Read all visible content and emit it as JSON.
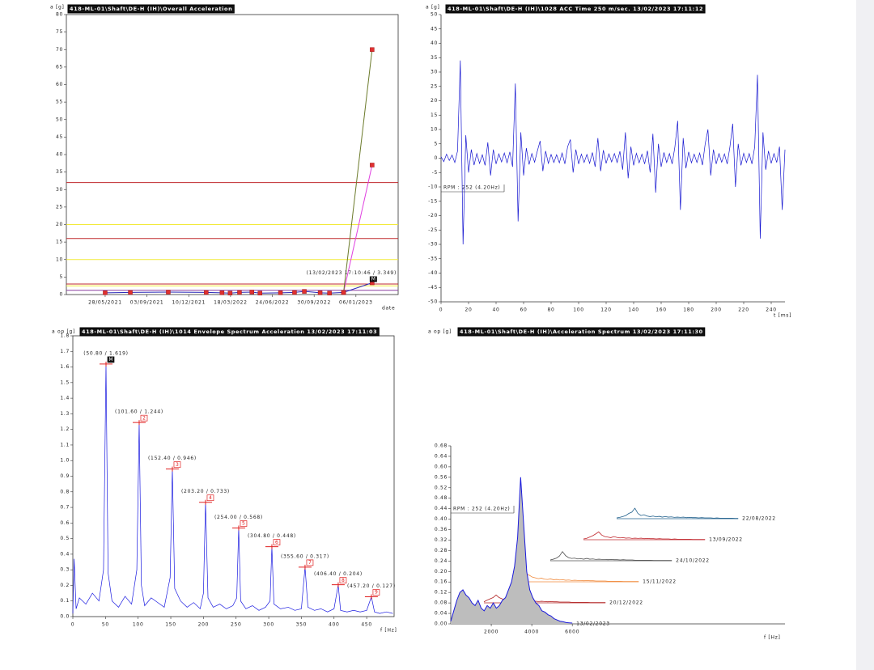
{
  "chart_data": [
    {
      "type": "line",
      "title": "418-ML-01\\Shaft\\DE-H (IH)\\Overall Acceleration",
      "ylabel": "a [g]",
      "xlabel": "date",
      "xlim": [
        "26/02/2021",
        "15/04/2023"
      ],
      "xticks": [
        "28/05/2021",
        "03/09/2021",
        "10/12/2021",
        "18/03/2022",
        "24/06/2022",
        "30/09/2022",
        "06/01/2023"
      ],
      "ylim": [
        0,
        80
      ],
      "yticks": [
        0,
        5,
        10,
        15,
        20,
        25,
        30,
        35,
        40,
        45,
        50,
        55,
        60,
        65,
        70,
        75,
        80
      ],
      "alarm_levels": [
        {
          "value": 32,
          "color": "#c0282d"
        },
        {
          "value": 20,
          "color": "#f2ea3a"
        },
        {
          "value": 16,
          "color": "#c0282d"
        },
        {
          "value": 10,
          "color": "#f2ea3a"
        },
        {
          "value": 3,
          "color": "#c0282d"
        },
        {
          "value": 2.5,
          "color": "#f2ea3a"
        },
        {
          "value": 1.2,
          "color": "#8a3fa0"
        }
      ],
      "marker_color": "#e03030",
      "series": [
        {
          "color": "#2a2ab8",
          "x": [
            "28/05/2021",
            "26/07/2021",
            "23/10/2021",
            "20/01/2022",
            "26/02/2022",
            "17/03/2022",
            "08/04/2022",
            "07/05/2022",
            "26/05/2022",
            "13/07/2022",
            "15/08/2022",
            "07/09/2022",
            "14/10/2022",
            "05/11/2022",
            "08/12/2022",
            "13/02/2023"
          ],
          "values": [
            0.5,
            0.6,
            0.7,
            0.6,
            0.5,
            0.4,
            0.6,
            0.7,
            0.4,
            0.5,
            0.6,
            0.9,
            0.5,
            0.4,
            0.6,
            3.349
          ]
        },
        {
          "color": "#e040e0",
          "x": [
            "08/12/2022",
            "13/02/2023"
          ],
          "values": [
            0.6,
            37
          ]
        },
        {
          "color": "#6b7a2a",
          "x": [
            "08/12/2022",
            "13/02/2023"
          ],
          "values": [
            0.6,
            70
          ]
        }
      ],
      "annotation": {
        "label": "(13/02/2023 17:10:46 / 3.349)",
        "marker": "M"
      }
    },
    {
      "type": "line",
      "title": "418-ML-01\\Shaft\\DE-H (IH)\\1028 ACC Time 250 m/sec. 13/02/2023 17:11:12",
      "ylabel": "a [g]",
      "xlabel": "t [ms]",
      "annotation": "RPM : 252 (4.20Hz)",
      "xlim": [
        0,
        250
      ],
      "xticks": [
        0,
        20,
        40,
        60,
        80,
        100,
        120,
        140,
        160,
        180,
        200,
        220,
        240
      ],
      "ylim": [
        -50,
        50
      ],
      "yticks": [
        50,
        45,
        40,
        35,
        30,
        25,
        20,
        15,
        10,
        5,
        0,
        -5,
        -10,
        -15,
        -20,
        -25,
        -30,
        -35,
        -40,
        -45,
        -50
      ],
      "x": [
        0,
        2,
        4,
        6,
        8,
        10,
        12,
        14,
        16,
        18,
        20,
        22,
        24,
        26,
        28,
        30,
        32,
        34,
        36,
        38,
        40,
        42,
        44,
        46,
        48,
        50,
        52,
        54,
        56,
        58,
        60,
        62,
        64,
        66,
        68,
        70,
        72,
        74,
        76,
        78,
        80,
        82,
        84,
        86,
        88,
        90,
        92,
        94,
        96,
        98,
        100,
        102,
        104,
        106,
        108,
        110,
        112,
        114,
        116,
        118,
        120,
        122,
        124,
        126,
        128,
        130,
        132,
        134,
        136,
        138,
        140,
        142,
        144,
        146,
        148,
        150,
        152,
        154,
        156,
        158,
        160,
        162,
        164,
        166,
        168,
        170,
        172,
        174,
        176,
        178,
        180,
        182,
        184,
        186,
        188,
        190,
        192,
        194,
        196,
        198,
        200,
        202,
        204,
        206,
        208,
        210,
        212,
        214,
        216,
        218,
        220,
        222,
        224,
        226,
        228,
        230,
        232,
        234,
        236,
        238,
        240,
        242,
        244,
        246,
        248,
        250
      ],
      "series": [
        {
          "color": "#1515d0",
          "values": [
            0.5,
            -1.2,
            1.4,
            -0.8,
            1.1,
            -1.5,
            2.5,
            34,
            -30,
            8,
            -5,
            3,
            -2.4,
            1.6,
            -1.8,
            1.2,
            -2.5,
            5.5,
            -6,
            3,
            -2,
            1.5,
            -1.3,
            1.8,
            -1.6,
            2.2,
            -3,
            26,
            -22,
            9,
            -6,
            3.5,
            -2.2,
            1.6,
            -1.4,
            2.5,
            6,
            -4.5,
            2.5,
            -1.8,
            1.3,
            -1.5,
            1.2,
            -1.6,
            1.8,
            -2,
            4,
            6.5,
            -5,
            3,
            -2,
            1.4,
            -1.5,
            1.3,
            -1.8,
            2,
            -3,
            7,
            -4.5,
            2.8,
            -1.8,
            1.5,
            -1.3,
            1.6,
            -1.5,
            2.4,
            -4,
            9,
            -7,
            4,
            -2.5,
            1.7,
            -1.6,
            1.4,
            -2,
            2.6,
            -5,
            8.5,
            -12,
            5,
            -3,
            2,
            -1.5,
            1.6,
            -2,
            4,
            13,
            -18,
            7,
            -3.5,
            2.2,
            -1.6,
            1.4,
            -1.5,
            1.8,
            -2.4,
            5,
            10,
            -6,
            3,
            -2,
            1.6,
            -1.4,
            1.5,
            -2,
            4,
            12,
            -10,
            5,
            -2.5,
            1.7,
            -1.5,
            1.6,
            -2,
            4,
            29,
            -28,
            9,
            -4,
            2.5,
            -1.8,
            1.6,
            -1.5,
            4,
            -18,
            3
          ]
        }
      ]
    },
    {
      "type": "line",
      "title": "418-ML-01\\Shaft\\DE-H (IH)\\1014 Envelope Spectrum Acceleration 13/02/2023 17:11:03",
      "ylabel": "a op [g]",
      "xlabel": "f [Hz]",
      "xlim": [
        0,
        492
      ],
      "xticks": [
        0,
        50,
        100,
        150,
        200,
        250,
        300,
        350,
        400,
        450
      ],
      "ylim": [
        0,
        1.8
      ],
      "yticks": [
        {
          "value": 0,
          "label": "0.0"
        },
        0.1,
        0.2,
        0.3,
        0.4,
        0.5,
        0.6,
        0.7,
        0.8,
        0.9,
        {
          "value": 1,
          "label": "1.0"
        },
        1.1,
        1.2,
        1.3,
        1.4,
        1.5,
        1.6,
        1.7,
        1.8
      ],
      "x": [
        0,
        2,
        5,
        10,
        20,
        30,
        40,
        47,
        50.8,
        54,
        60,
        70,
        80,
        90,
        98,
        101.6,
        105,
        110,
        120,
        130,
        140,
        149,
        152.4,
        156,
        165,
        175,
        185,
        195,
        200,
        203.2,
        207,
        215,
        225,
        235,
        245,
        251,
        254,
        257,
        265,
        275,
        285,
        295,
        302,
        304.8,
        308,
        318,
        330,
        340,
        350,
        355.6,
        360,
        370,
        380,
        390,
        400,
        406.4,
        410,
        420,
        430,
        440,
        450,
        457.2,
        462,
        470,
        480,
        490
      ],
      "series": [
        {
          "color": "#1a1ae0",
          "values": [
            0.02,
            0.37,
            0.05,
            0.12,
            0.08,
            0.15,
            0.1,
            0.3,
            1.619,
            0.28,
            0.1,
            0.06,
            0.13,
            0.08,
            0.3,
            1.244,
            0.2,
            0.07,
            0.12,
            0.09,
            0.06,
            0.25,
            0.946,
            0.18,
            0.1,
            0.06,
            0.09,
            0.05,
            0.15,
            0.733,
            0.12,
            0.06,
            0.08,
            0.05,
            0.07,
            0.12,
            0.568,
            0.1,
            0.05,
            0.07,
            0.04,
            0.06,
            0.1,
            0.448,
            0.08,
            0.05,
            0.06,
            0.04,
            0.05,
            0.317,
            0.06,
            0.04,
            0.05,
            0.03,
            0.05,
            0.204,
            0.04,
            0.03,
            0.04,
            0.03,
            0.04,
            0.127,
            0.03,
            0.02,
            0.03,
            0.02
          ]
        }
      ],
      "peaks": [
        {
          "x": 50.8,
          "y": 1.619,
          "label": "(50.80 / 1.619)",
          "marker": "M"
        },
        {
          "x": 101.6,
          "y": 1.244,
          "label": "(101.60 / 1.244)",
          "marker": "2"
        },
        {
          "x": 152.4,
          "y": 0.946,
          "label": "(152.40 / 0.946)",
          "marker": "3"
        },
        {
          "x": 203.2,
          "y": 0.733,
          "label": "(203.20 / 0.733)",
          "marker": "4"
        },
        {
          "x": 254,
          "y": 0.568,
          "label": "(254.00 / 0.568)",
          "marker": "5"
        },
        {
          "x": 304.8,
          "y": 0.448,
          "label": "(304.80 / 0.448)",
          "marker": "6"
        },
        {
          "x": 355.6,
          "y": 0.317,
          "label": "(355.60 / 0.317)",
          "marker": "7"
        },
        {
          "x": 406.4,
          "y": 0.204,
          "label": "(406.40 / 0.204)",
          "marker": "8"
        },
        {
          "x": 457.2,
          "y": 0.127,
          "label": "(457.20 / 0.127)",
          "marker": "9"
        }
      ]
    },
    {
      "type": "waterfall",
      "title": "418-ML-01\\Shaft\\DE-H (IH)\\Acceleration Spectrum 13/02/2023 17:11:30",
      "ylabel": "a op [g]",
      "xlabel": "f [Hz]",
      "annotation": "RPM : 252 (4.20Hz)",
      "xlim": [
        0,
        16500
      ],
      "xticks": [
        2000,
        4000,
        6000
      ],
      "ylim": [
        0,
        0.68
      ],
      "yticks": [
        {
          "value": 0,
          "label": "0.00"
        },
        {
          "value": 0.04,
          "label": "0.04"
        },
        {
          "value": 0.08,
          "label": "0.08"
        },
        {
          "value": 0.12,
          "label": "0.12"
        },
        {
          "value": 0.16,
          "label": "0.16"
        },
        {
          "value": 0.2,
          "label": "0.20"
        },
        {
          "value": 0.24,
          "label": "0.24"
        },
        {
          "value": 0.28,
          "label": "0.28"
        },
        {
          "value": 0.32,
          "label": "0.32"
        },
        {
          "value": 0.36,
          "label": "0.36"
        },
        {
          "value": 0.4,
          "label": "0.40"
        },
        {
          "value": 0.44,
          "label": "0.44"
        },
        {
          "value": 0.48,
          "label": "0.48"
        },
        {
          "value": 0.52,
          "label": "0.52"
        },
        {
          "value": 0.56,
          "label": "0.56"
        },
        {
          "value": 0.6,
          "label": "0.60"
        },
        {
          "value": 0.64,
          "label": "0.64"
        },
        {
          "value": 0.68,
          "label": "0.68"
        }
      ],
      "fill_color": "#bdbdbd",
      "x": [
        0,
        150,
        300,
        450,
        600,
        750,
        900,
        1050,
        1200,
        1350,
        1500,
        1650,
        1800,
        1950,
        2100,
        2250,
        2400,
        2550,
        2700,
        2850,
        3000,
        3150,
        3300,
        3450,
        3600,
        3750,
        3900,
        4050,
        4200,
        4350,
        4500,
        4650,
        4800,
        4950,
        5100,
        5250,
        5400,
        5550,
        5700,
        5850,
        6000
      ],
      "series": [
        {
          "name": "13/02/2023",
          "color": "#1a1adc",
          "values": [
            0.01,
            0.05,
            0.09,
            0.12,
            0.13,
            0.11,
            0.1,
            0.08,
            0.07,
            0.09,
            0.06,
            0.05,
            0.07,
            0.06,
            0.08,
            0.06,
            0.07,
            0.09,
            0.1,
            0.13,
            0.16,
            0.22,
            0.33,
            0.56,
            0.38,
            0.2,
            0.13,
            0.1,
            0.08,
            0.07,
            0.05,
            0.045,
            0.035,
            0.03,
            0.02,
            0.015,
            0.01,
            0.008,
            0.005,
            0.004,
            0.003
          ]
        },
        {
          "name": "20/12/2022",
          "color": "#b22222",
          "values": [
            0.004,
            0.01,
            0.015,
            0.02,
            0.03,
            0.02,
            0.015,
            0.012,
            0.01,
            0.012,
            0.009,
            0.008,
            0.01,
            0.007,
            0.008,
            0.006,
            0.007,
            0.006,
            0.005,
            0.006,
            0.005,
            0.004,
            0.005,
            0.004,
            0.004,
            0.003,
            0.003,
            0.003,
            0.003,
            0.002,
            0.002,
            0.002,
            0.002,
            0.002,
            0.002,
            0.001,
            0.001,
            0.001,
            0.001,
            0.001,
            0.001
          ]
        },
        {
          "name": "15/11/2022",
          "color": "#f08a3c",
          "values": [
            0.004,
            0.01,
            0.02,
            0.03,
            0.025,
            0.018,
            0.015,
            0.012,
            0.014,
            0.01,
            0.009,
            0.011,
            0.008,
            0.009,
            0.007,
            0.008,
            0.006,
            0.007,
            0.005,
            0.006,
            0.005,
            0.005,
            0.004,
            0.005,
            0.004,
            0.004,
            0.003,
            0.003,
            0.003,
            0.003,
            0.002,
            0.002,
            0.002,
            0.002,
            0.002,
            0.001,
            0.001,
            0.001,
            0.001,
            0.001,
            0.001
          ]
        },
        {
          "name": "24/10/2022",
          "color": "#505050",
          "values": [
            0.003,
            0.006,
            0.01,
            0.018,
            0.035,
            0.02,
            0.012,
            0.009,
            0.01,
            0.007,
            0.008,
            0.006,
            0.009,
            0.006,
            0.007,
            0.005,
            0.006,
            0.005,
            0.005,
            0.004,
            0.005,
            0.004,
            0.004,
            0.003,
            0.004,
            0.003,
            0.003,
            0.003,
            0.002,
            0.002,
            0.002,
            0.002,
            0.002,
            0.002,
            0.001,
            0.001,
            0.001,
            0.001,
            0.001,
            0.001,
            0.001
          ]
        },
        {
          "name": "13/09/2022",
          "color": "#c0272d",
          "values": [
            0.003,
            0.005,
            0.01,
            0.015,
            0.022,
            0.03,
            0.018,
            0.012,
            0.01,
            0.008,
            0.012,
            0.009,
            0.007,
            0.008,
            0.006,
            0.007,
            0.005,
            0.006,
            0.005,
            0.006,
            0.004,
            0.005,
            0.004,
            0.004,
            0.003,
            0.004,
            0.003,
            0.003,
            0.003,
            0.002,
            0.003,
            0.002,
            0.002,
            0.002,
            0.002,
            0.002,
            0.001,
            0.001,
            0.001,
            0.001,
            0.001
          ]
        },
        {
          "name": "22/08/2022",
          "color": "#1f5f8b",
          "values": [
            0.003,
            0.005,
            0.008,
            0.012,
            0.02,
            0.025,
            0.04,
            0.02,
            0.012,
            0.015,
            0.01,
            0.008,
            0.01,
            0.007,
            0.009,
            0.006,
            0.008,
            0.006,
            0.007,
            0.005,
            0.006,
            0.005,
            0.006,
            0.004,
            0.005,
            0.004,
            0.004,
            0.003,
            0.004,
            0.003,
            0.003,
            0.003,
            0.002,
            0.003,
            0.002,
            0.002,
            0.002,
            0.002,
            0.002,
            0.001,
            0.001
          ]
        }
      ]
    }
  ]
}
